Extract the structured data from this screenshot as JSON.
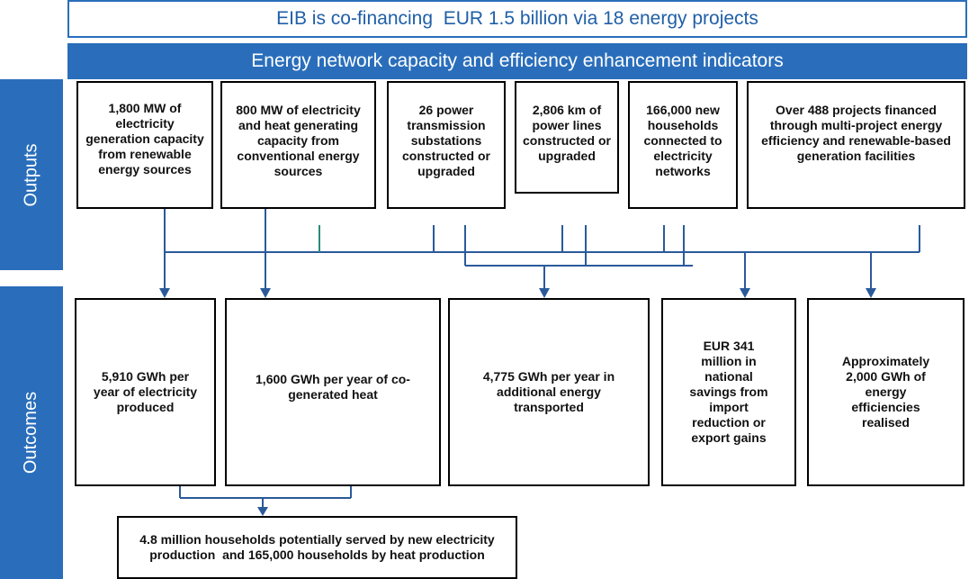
{
  "header": {
    "title": "EIB is co-financing  EUR 1.5 billion via 18 energy projects",
    "subtitle": "Energy network capacity and efficiency enhancement indicators"
  },
  "sections": {
    "outputs": "Outputs",
    "outcomes": "Outcomes"
  },
  "outputs": [
    "1,800 MW of electricity generation capacity from renewable energy sources",
    "800 MW of electricity and heat generating capacity from conventional energy sources",
    "26 power transmission substations constructed or upgraded",
    "2,806 km of power lines constructed or upgraded",
    "166,000 new households connected to electricity networks",
    "Over 488 projects financed through multi-project energy efficiency and renewable-based generation facilities"
  ],
  "outcomes": [
    "5,910 GWh per year of electricity produced",
    "1,600 GWh per year of co-generated heat",
    "4,775 GWh per year in additional energy transported",
    "EUR 341 million in national savings from import reduction or export gains",
    "Approximately 2,000 GWh of energy efficiencies realised"
  ],
  "result": "4.8 million households potentially served by new electricity production  and 165,000 households by heat production"
}
